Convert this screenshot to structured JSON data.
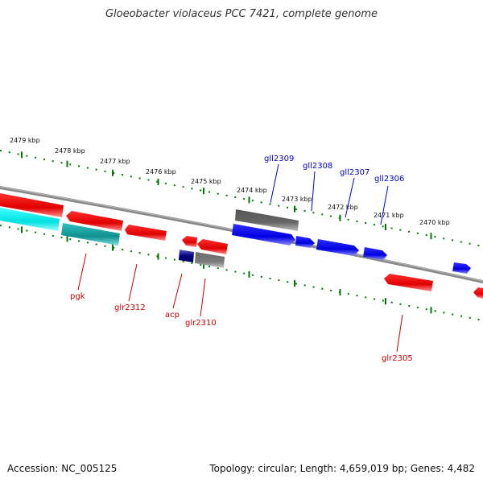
{
  "title": "Gloeobacter violaceus PCC 7421, complete genome",
  "footer": {
    "accession": "Accession: NC_005125",
    "summary": "Topology: circular; Length: 4,659,019 bp; Genes: 4,482"
  },
  "colors": {
    "forward_label": "#0000cc",
    "reverse_label": "#cc0000",
    "tick": "#007700",
    "backbone": "#888888"
  },
  "kbp_labels": [
    "2479 kbp",
    "2478 kbp",
    "2477 kbp",
    "2476 kbp",
    "2475 kbp",
    "2474 kbp",
    "2473 kbp",
    "2472 kbp",
    "2471 kbp",
    "2470 kbp"
  ],
  "gene_labels": {
    "forward": [
      "gll2309",
      "gll2308",
      "gll2307",
      "gll2306"
    ],
    "reverse": [
      "pgk",
      "glr2312",
      "acp",
      "glr2310",
      "glr2305"
    ]
  }
}
